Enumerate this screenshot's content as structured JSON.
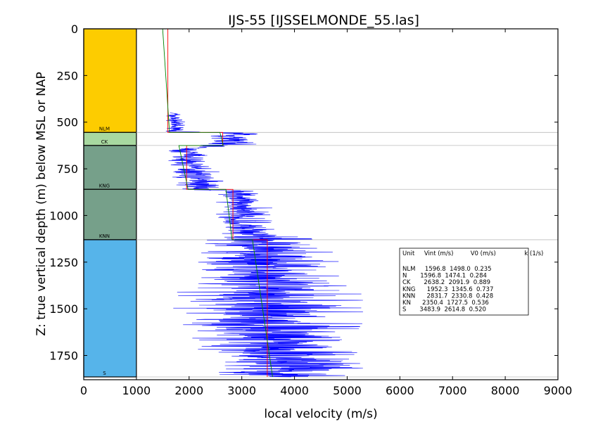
{
  "chart_data": {
    "type": "line",
    "title": "IJS-55 [IJSSELMONDE_55.las]",
    "xlabel": "local velocity (m/s)",
    "ylabel": "Z: true vertical depth (m) below MSL or NAP",
    "xlim": [
      0,
      9000
    ],
    "ylim": [
      1880,
      0
    ],
    "x_ticks": [
      "0",
      "1000",
      "2000",
      "3000",
      "4000",
      "5000",
      "6000",
      "7000",
      "8000",
      "9000"
    ],
    "y_ticks": [
      "0",
      "250",
      "500",
      "750",
      "1000",
      "1250",
      "1500",
      "1750"
    ],
    "grid": false,
    "colors": {
      "log": "#0000ff",
      "vint": "#ff0000",
      "model": "#008000",
      "boundary": "#bbbbbb",
      "NLM": "#fdcc00",
      "CK": "#a8d8a0",
      "KNG": "#76a08a",
      "KNN": "#76a08a",
      "S": "#56b4ea"
    },
    "units": [
      {
        "name": "NLM",
        "top": 0,
        "base": 555,
        "vint": 1596.8,
        "v0": 1498.0,
        "k": 0.235
      },
      {
        "name": "CK",
        "top": 555,
        "base": 625,
        "vint": 2638.2,
        "v0": 2091.9,
        "k": 0.889
      },
      {
        "name": "KNG",
        "top": 625,
        "base": 860,
        "vint": 1952.3,
        "v0": 1345.6,
        "k": 0.737
      },
      {
        "name": "KNN",
        "top": 860,
        "base": 1130,
        "vint": 2831.7,
        "v0": 2330.8,
        "k": 0.428
      },
      {
        "name": "S",
        "top": 1130,
        "base": 1865,
        "vint": 3483.9,
        "v0": 2614.8,
        "k": 0.52
      }
    ],
    "log_profile": [
      {
        "depth": 450,
        "v": 1700,
        "spread": 150
      },
      {
        "depth": 550,
        "v": 1750,
        "spread": 150
      },
      {
        "depth": 560,
        "v": 2900,
        "spread": 400
      },
      {
        "depth": 620,
        "v": 2800,
        "spread": 400
      },
      {
        "depth": 640,
        "v": 1900,
        "spread": 300
      },
      {
        "depth": 860,
        "v": 2200,
        "spread": 400
      },
      {
        "depth": 870,
        "v": 2900,
        "spread": 350
      },
      {
        "depth": 1100,
        "v": 3100,
        "spread": 500
      },
      {
        "depth": 1130,
        "v": 3300,
        "spread": 900
      },
      {
        "depth": 1500,
        "v": 3500,
        "spread": 1500
      },
      {
        "depth": 1865,
        "v": 3800,
        "spread": 1200
      }
    ],
    "table": {
      "header": "Unit     Vint (m/s)         V0 (m/s)               k (1/s)",
      "rows": [
        "NLM     1596.8  1498.0  0.235",
        "N       1596.8  1474.1  0.284",
        "CK       2638.2  2091.9  0.889",
        "KNG      1952.3  1345.6  0.737",
        "KNN      2831.7  2330.8  0.428",
        "KN      2350.4  1727.5  0.536",
        "S       3483.9  2614.8  0.520"
      ]
    }
  }
}
